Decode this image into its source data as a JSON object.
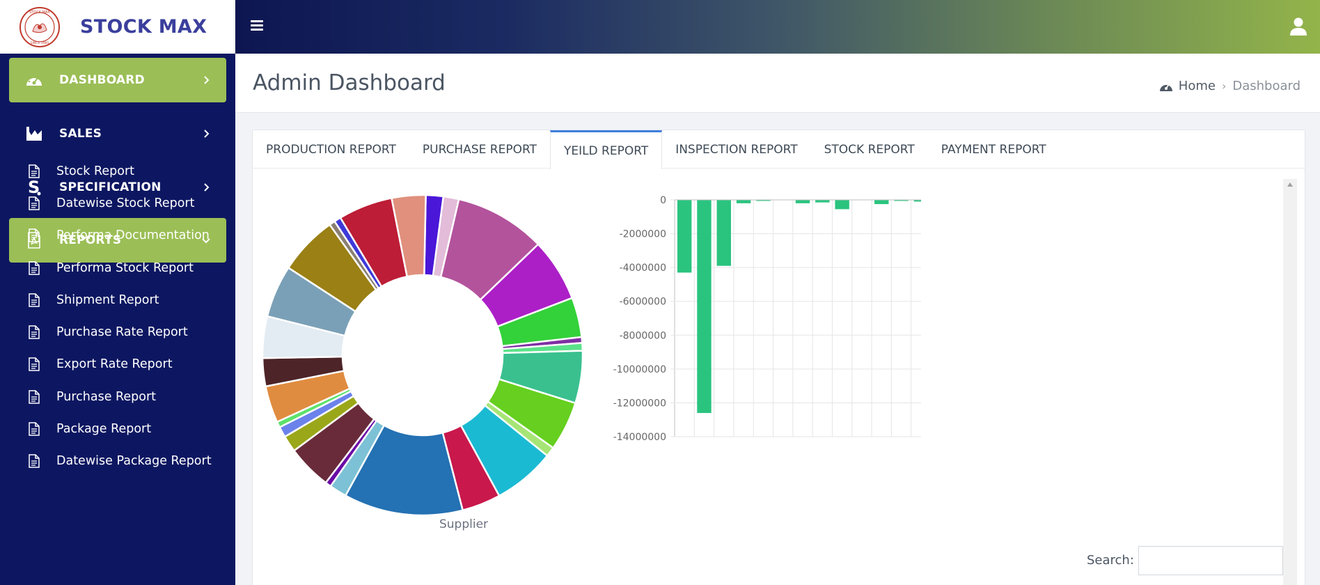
{
  "brand": {
    "name": "STOCK MAX"
  },
  "sidebar": {
    "menu": [
      {
        "label": "DASHBOARD",
        "icon": "speedometer-icon",
        "active": true
      },
      {
        "label": "SALES",
        "icon": "bar-chart-icon",
        "active": false
      },
      {
        "label": "SPECIFICATION",
        "icon": "s-logo-icon",
        "active": false
      },
      {
        "label": "REPORTS",
        "icon": "pdf-file-icon",
        "active": true,
        "expanded": true
      }
    ],
    "reports": [
      "Stock Report",
      "Datewise Stock Report",
      "Performa Documentation",
      "Performa Stock Report",
      "Shipment Report",
      "Purchase Rate Report",
      "Export Rate Report",
      "Purchase Report",
      "Package Report",
      "Datewise Package Report"
    ]
  },
  "header": {
    "title": "Admin Dashboard",
    "breadcrumb": {
      "home": "Home",
      "current": "Dashboard"
    }
  },
  "tabs": [
    {
      "label": "PRODUCTION REPORT",
      "active": false
    },
    {
      "label": "PURCHASE REPORT",
      "active": false
    },
    {
      "label": "YEILD REPORT",
      "active": true
    },
    {
      "label": "INSPECTION REPORT",
      "active": false
    },
    {
      "label": "STOCK REPORT",
      "active": false
    },
    {
      "label": "PAYMENT REPORT",
      "active": false
    }
  ],
  "search": {
    "label": "Search:",
    "value": ""
  },
  "colors": {
    "sidebar": "#0d1761",
    "accent": "#9bbe56",
    "tabActive": "#3f7ddb",
    "bar": "#2ac47f"
  },
  "chart_data": [
    {
      "type": "pie",
      "variant": "donut",
      "title": "",
      "xlabel": "Supplier",
      "slices": [
        {
          "value": 1.8,
          "color": "#4a17d8"
        },
        {
          "value": 1.6,
          "color": "#e3bcd9"
        },
        {
          "value": 9.4,
          "color": "#b3539c"
        },
        {
          "value": 6.5,
          "color": "#ac1fc7"
        },
        {
          "value": 4.1,
          "color": "#33d13a"
        },
        {
          "value": 0.6,
          "color": "#7f2fa3"
        },
        {
          "value": 0.8,
          "color": "#5be38a"
        },
        {
          "value": 5.4,
          "color": "#3ac08f"
        },
        {
          "value": 5.1,
          "color": "#66cf1f"
        },
        {
          "value": 1.0,
          "color": "#a6e575"
        },
        {
          "value": 6.4,
          "color": "#1bbad3"
        },
        {
          "value": 4.0,
          "color": "#c8184c"
        },
        {
          "value": 12.3,
          "color": "#2471b3"
        },
        {
          "value": 1.8,
          "color": "#7cc1d5"
        },
        {
          "value": 0.6,
          "color": "#6a0ba5"
        },
        {
          "value": 4.6,
          "color": "#692b3a"
        },
        {
          "value": 1.7,
          "color": "#9aa719"
        },
        {
          "value": 1.1,
          "color": "#6b82eb"
        },
        {
          "value": 0.6,
          "color": "#5de26c"
        },
        {
          "value": 3.8,
          "color": "#e08c40"
        },
        {
          "value": 2.9,
          "color": "#4d2428"
        },
        {
          "value": 4.3,
          "color": "#e3ecf3"
        },
        {
          "value": 5.4,
          "color": "#7aa0b7"
        },
        {
          "value": 6.1,
          "color": "#9a8015"
        },
        {
          "value": 0.6,
          "color": "#8a7f70"
        },
        {
          "value": 0.7,
          "color": "#3e39d8"
        },
        {
          "value": 5.6,
          "color": "#bd1d36"
        },
        {
          "value": 3.5,
          "color": "#e0907d"
        }
      ]
    },
    {
      "type": "bar",
      "title": "",
      "xlabel": "",
      "ylabel": "",
      "ylim": [
        -14000000,
        0
      ],
      "yticks": [
        0,
        -2000000,
        -4000000,
        -6000000,
        -8000000,
        -10000000,
        -12000000,
        -14000000
      ],
      "grid": true,
      "series": [
        {
          "values": [
            -4300000,
            -12600000,
            -3900000,
            -200000,
            -50000,
            0,
            -200000,
            -150000,
            -550000,
            0,
            -250000,
            -50000,
            -100000
          ]
        }
      ]
    }
  ]
}
